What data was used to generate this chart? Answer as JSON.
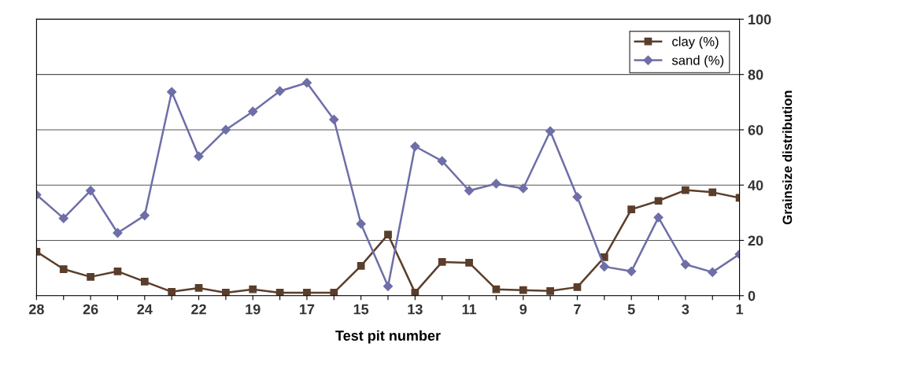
{
  "chart_data": {
    "type": "line",
    "xlabel": "Test pit number",
    "ylabel": "Grainsize distribution",
    "categories": [
      "28",
      null,
      "26",
      null,
      "24",
      null,
      "22",
      null,
      "19",
      null,
      "17",
      null,
      "15",
      null,
      "13",
      null,
      "11",
      null,
      "9",
      null,
      "7",
      null,
      "5",
      null,
      "3",
      null,
      "1"
    ],
    "series": [
      {
        "name": "clay (%)",
        "color": "#5a3e2b",
        "marker": "square",
        "values": [
          15.9,
          9.6,
          6.8,
          8.8,
          5.1,
          1.4,
          2.8,
          1.1,
          2.3,
          1.1,
          1.1,
          1.1,
          10.8,
          22.1,
          1.1,
          12.2,
          11.9,
          2.3,
          2.0,
          1.7,
          3.1,
          13.9,
          31.2,
          34.3,
          38.2,
          37.4,
          35.4
        ]
      },
      {
        "name": "sand (%)",
        "color": "#6e6ea8",
        "marker": "diamond",
        "values": [
          36.5,
          28,
          38,
          22.7,
          29,
          73.7,
          50.4,
          60,
          66.6,
          74,
          77,
          63.7,
          26,
          3.4,
          54,
          48.7,
          38,
          40.5,
          38.8,
          59.5,
          35.7,
          10.5,
          8.8,
          28.3,
          11.3,
          8.5,
          15
        ]
      }
    ],
    "ylim": [
      0,
      100
    ],
    "yticks": [
      0,
      20,
      40,
      60,
      80,
      100
    ],
    "grid": "y",
    "legend": "top right",
    "line_style": "solid"
  }
}
